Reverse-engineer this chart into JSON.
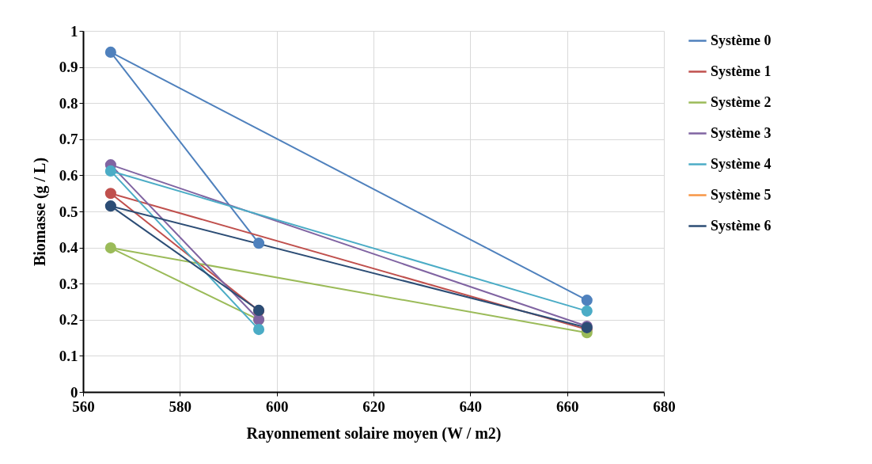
{
  "chart_data": {
    "type": "line",
    "xlabel": "Rayonnement solaire moyen (W / m2)",
    "ylabel": "Biomasse (g / L)",
    "xlim": [
      560,
      680
    ],
    "xticks": [
      560,
      580,
      600,
      620,
      640,
      660,
      680
    ],
    "ylim": [
      0,
      1
    ],
    "yticks": [
      0,
      0.1,
      0.2,
      0.3,
      0.4,
      0.5,
      0.6,
      0.7,
      0.8,
      0.9,
      1
    ],
    "grid": true,
    "legend": "right",
    "marker": "circle",
    "series": [
      {
        "name": "Système 0",
        "color": "#4f81bd",
        "x": [
          596.3,
          565.7,
          664.1
        ],
        "values": [
          0.412,
          0.941,
          0.254
        ]
      },
      {
        "name": "Système 1",
        "color": "#c0504d",
        "x": [
          596.3,
          565.7,
          664.1
        ],
        "values": [
          0.225,
          0.55,
          0.173
        ]
      },
      {
        "name": "Système 2",
        "color": "#9bbb59",
        "x": [
          596.3,
          565.7,
          664.1
        ],
        "values": [
          0.2,
          0.399,
          0.164
        ]
      },
      {
        "name": "Système 3",
        "color": "#8064a2",
        "x": [
          596.3,
          565.7,
          664.1
        ],
        "values": [
          0.2,
          0.629,
          0.182
        ]
      },
      {
        "name": "Système 4",
        "color": "#4bacc6",
        "x": [
          596.3,
          565.7,
          664.1
        ],
        "values": [
          0.173,
          0.612,
          0.224
        ]
      },
      {
        "name": "Système 5",
        "color": "#f79646"
      },
      {
        "name": "Système 6",
        "color": "#2c4d75",
        "x": [
          596.3,
          565.7,
          664.1
        ],
        "values": [
          0.226,
          0.515,
          0.178
        ]
      }
    ]
  }
}
